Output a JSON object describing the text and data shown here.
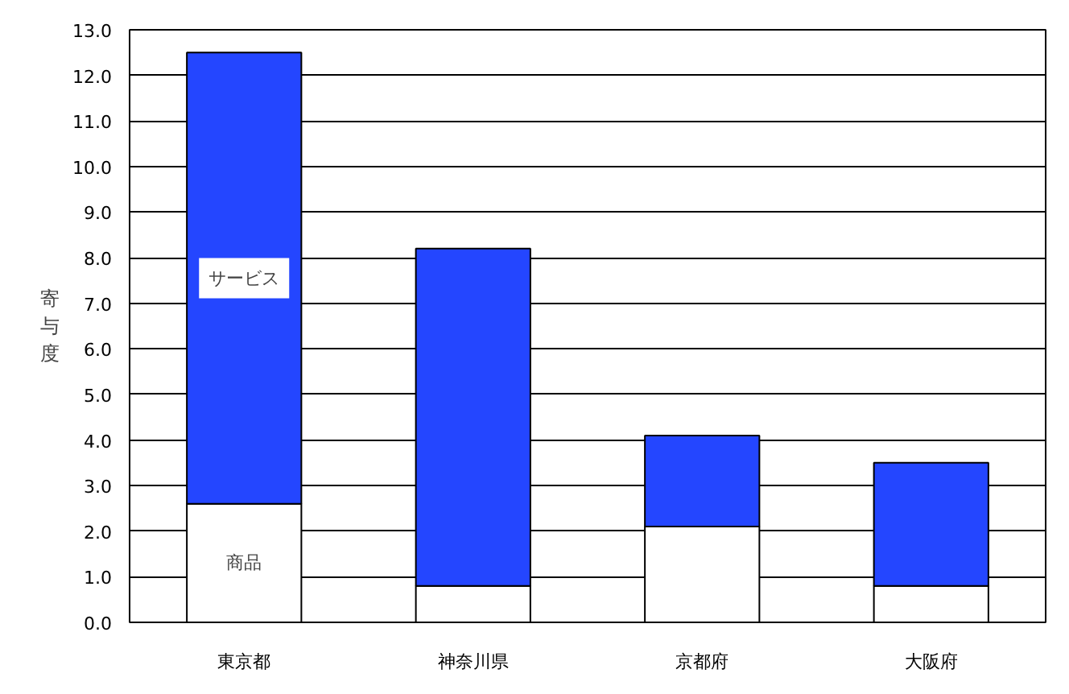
{
  "chart_data": {
    "type": "bar",
    "stacked": true,
    "ylabel": "寄与度",
    "categories": [
      "東京都",
      "神奈川県",
      "京都府",
      "大阪府"
    ],
    "series": [
      {
        "name": "商品",
        "color": "#ffffff",
        "values": [
          2.6,
          0.8,
          2.1,
          0.8
        ]
      },
      {
        "name": "サービス",
        "color": "#2446ff",
        "values": [
          9.9,
          7.4,
          2.0,
          2.7
        ]
      }
    ],
    "ylim": [
      0,
      13
    ],
    "yticks": [
      {
        "value": 0,
        "label": "0.0"
      },
      {
        "value": 1,
        "label": "1.0"
      },
      {
        "value": 2,
        "label": "2.0"
      },
      {
        "value": 3,
        "label": "3.0"
      },
      {
        "value": 4,
        "label": "4.0"
      },
      {
        "value": 5,
        "label": "5.0"
      },
      {
        "value": 6,
        "label": "6.0"
      },
      {
        "value": 7,
        "label": "7.0"
      },
      {
        "value": 8,
        "label": "8.0"
      },
      {
        "value": 9,
        "label": "9.0"
      },
      {
        "value": 10,
        "label": "10.0"
      },
      {
        "value": 11,
        "label": "11.0"
      },
      {
        "value": 12,
        "label": "12.0"
      },
      {
        "value": 13,
        "label": "13.0"
      }
    ],
    "grid": "y"
  }
}
